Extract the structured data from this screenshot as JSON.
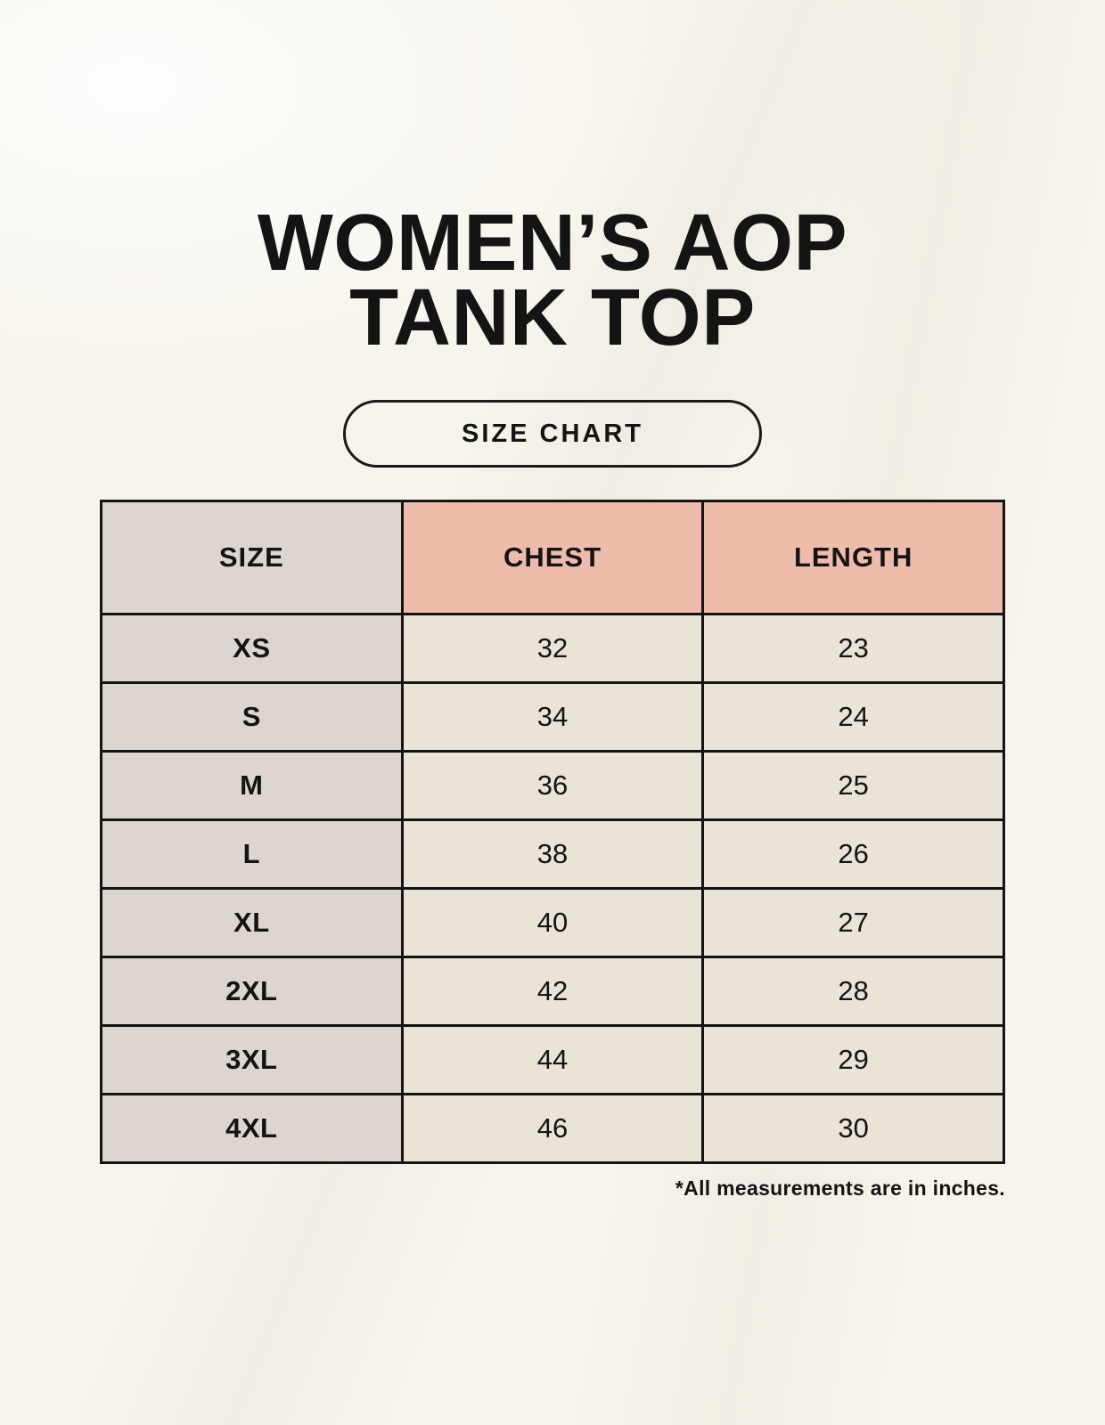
{
  "page": {
    "title_line1": "WOMEN’S AOP",
    "title_line2": "TANK TOP",
    "badge_label": "SIZE CHART",
    "footnote": "*All measurements are in inches."
  },
  "table": {
    "headers": [
      "SIZE",
      "CHEST",
      "LENGTH"
    ],
    "rows": [
      [
        "XS",
        "32",
        "23"
      ],
      [
        "S",
        "34",
        "24"
      ],
      [
        "M",
        "36",
        "25"
      ],
      [
        "L",
        "38",
        "26"
      ],
      [
        "XL",
        "40",
        "27"
      ],
      [
        "2XL",
        "42",
        "28"
      ],
      [
        "3XL",
        "44",
        "29"
      ],
      [
        "4XL",
        "46",
        "30"
      ]
    ]
  },
  "colors": {
    "page_background": "#f7f4ec",
    "text": "#141414",
    "table_border": "#141414",
    "size_column_bg": "#dcd5d0",
    "measure_header_bg": "#eebcab",
    "data_cell_bg": "#eae4d8"
  },
  "chart_data": {
    "type": "table",
    "title": "WOMEN’S AOP TANK TOP",
    "subtitle": "SIZE CHART",
    "columns": [
      "SIZE",
      "CHEST",
      "LENGTH"
    ],
    "rows": [
      [
        "XS",
        32,
        23
      ],
      [
        "S",
        34,
        24
      ],
      [
        "M",
        36,
        25
      ],
      [
        "L",
        38,
        26
      ],
      [
        "XL",
        40,
        27
      ],
      [
        "2XL",
        42,
        28
      ],
      [
        "3XL",
        44,
        29
      ],
      [
        "4XL",
        46,
        30
      ]
    ],
    "footnote": "*All measurements are in inches."
  }
}
